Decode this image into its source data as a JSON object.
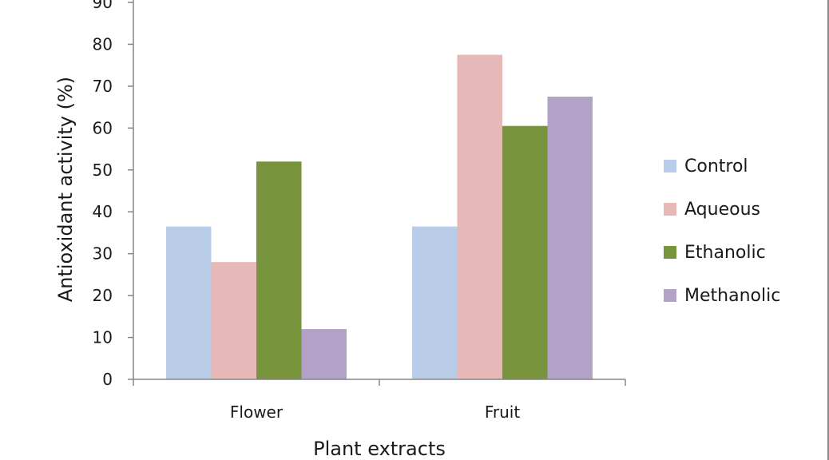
{
  "chart_data": {
    "type": "bar",
    "title": "",
    "xlabel": "Plant extracts",
    "ylabel": "Antioxidant activity (%)",
    "ylim": [
      0,
      90
    ],
    "yticks": [
      0,
      10,
      20,
      30,
      40,
      50,
      60,
      70,
      80,
      90
    ],
    "categories": [
      "Flower",
      "Fruit"
    ],
    "series": [
      {
        "name": "Control",
        "color": "#b9cde8",
        "values": [
          36.5,
          36.5
        ]
      },
      {
        "name": "Aqueous",
        "color": "#e6b9b8",
        "values": [
          28,
          77.5
        ]
      },
      {
        "name": "Ethanolic",
        "color": "#77933c",
        "values": [
          52,
          60.5
        ]
      },
      {
        "name": "Methanolic",
        "color": "#b3a2c7",
        "values": [
          12,
          67.5
        ]
      }
    ],
    "grid": false,
    "legend_position": "right"
  }
}
